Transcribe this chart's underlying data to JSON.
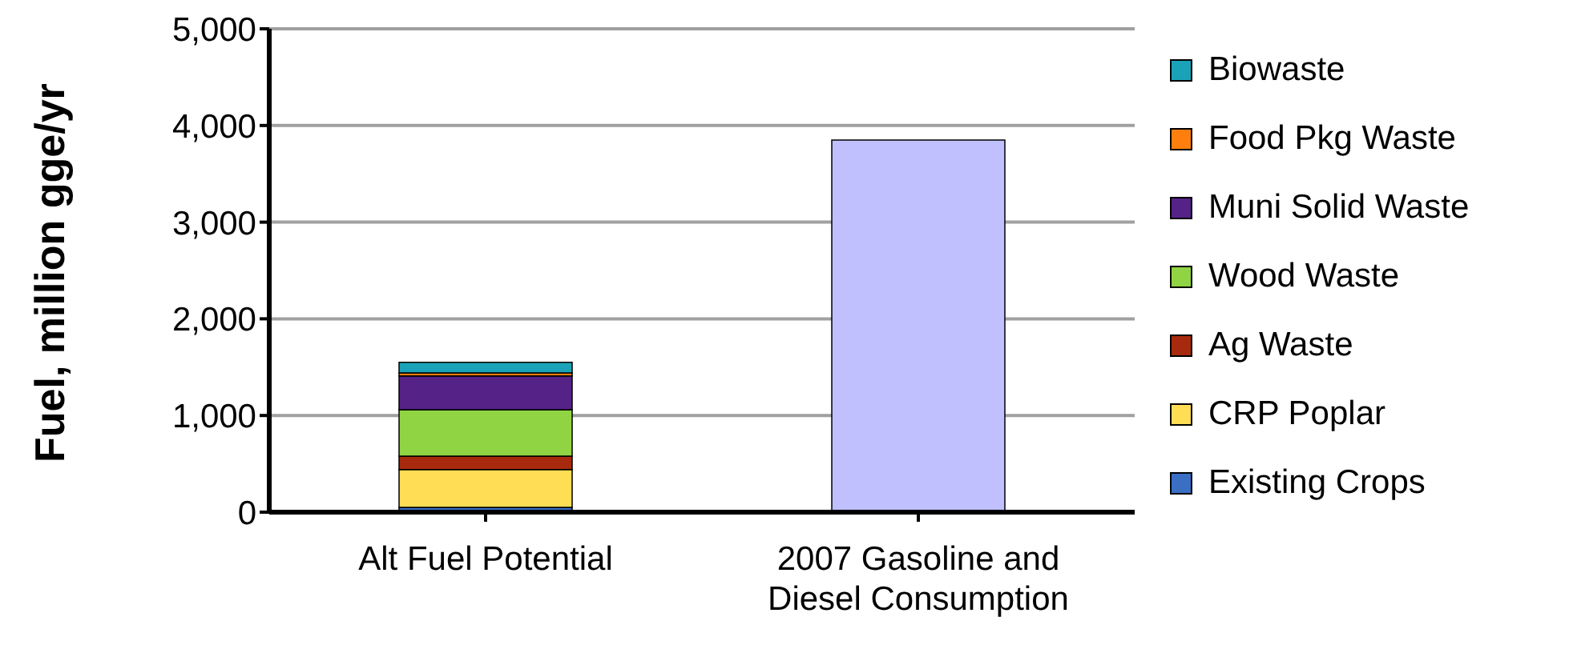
{
  "chart_data": {
    "type": "bar",
    "stacked": true,
    "ylabel": "Fuel, million gge/yr",
    "categories": [
      "Alt Fuel Potential",
      "2007 Gasoline and Diesel Consumption"
    ],
    "series": [
      {
        "name": "Existing Crops",
        "color": "#3a6fc4",
        "values": [
          50,
          null
        ]
      },
      {
        "name": "CRP Poplar",
        "color": "#ffdd55",
        "values": [
          390,
          null
        ]
      },
      {
        "name": "Ag Waste",
        "color": "#a82a0e",
        "values": [
          140,
          null
        ]
      },
      {
        "name": "Wood Waste",
        "color": "#90d444",
        "values": [
          480,
          null
        ]
      },
      {
        "name": "Muni Solid Waste",
        "color": "#552288",
        "values": [
          350,
          null
        ]
      },
      {
        "name": "Food Pkg Waste",
        "color": "#ff7f0e",
        "values": [
          30,
          null
        ]
      },
      {
        "name": "Biowaste",
        "color": "#1aa3b8",
        "values": [
          110,
          null
        ]
      },
      {
        "color": "#c0c0ff",
        "values": [
          null,
          3850
        ]
      }
    ],
    "ylim": [
      0,
      5000
    ],
    "yticks": [
      {
        "value": 0,
        "label": "0"
      },
      {
        "value": 1000,
        "label": "1,000"
      },
      {
        "value": 2000,
        "label": "2,000"
      },
      {
        "value": 3000,
        "label": "3,000"
      },
      {
        "value": 4000,
        "label": "4,000"
      },
      {
        "value": 5000,
        "label": "5,000"
      }
    ],
    "grid": "y",
    "legend": "right"
  }
}
